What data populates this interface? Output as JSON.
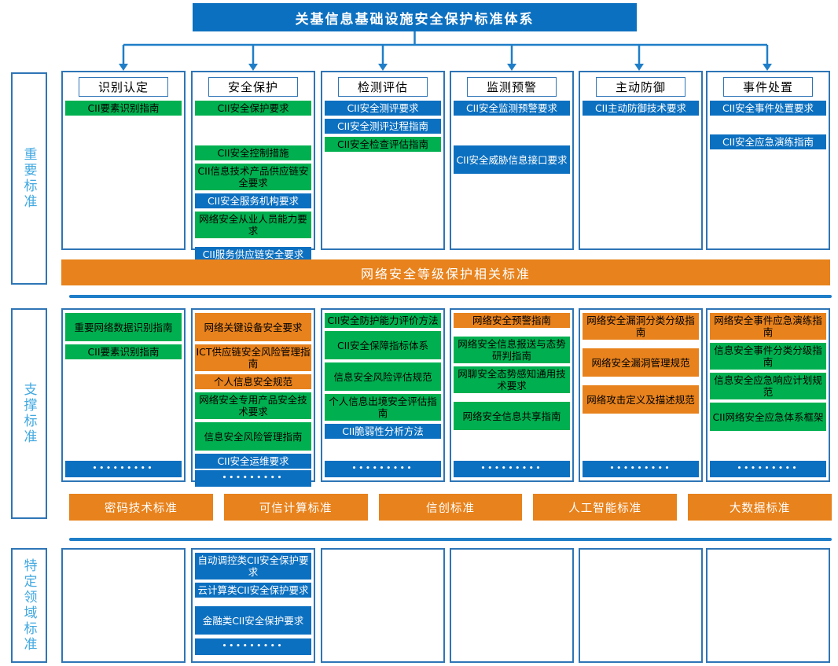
{
  "title": "关基信息基础设施安全保护标准体系",
  "colors": {
    "blue": "#0c70c0",
    "green": "#00b050",
    "orange": "#e8821c",
    "column_border": "#2e75b6",
    "arrow": "#1f7ec8",
    "side_label_text": "#41a8e0"
  },
  "side_labels": [
    {
      "id": "important",
      "label": "重要标准"
    },
    {
      "id": "supporting",
      "label": "支撑标准"
    },
    {
      "id": "domain",
      "label": "特定领域标准"
    }
  ],
  "important_section": {
    "columns": [
      {
        "header": "识别认定",
        "items": [
          {
            "text": "CII要素识别指南",
            "color": "green"
          }
        ]
      },
      {
        "header": "安全保护",
        "items": [
          {
            "text": "CII安全保护要求",
            "color": "green"
          },
          {
            "text": "CII安全控制措施",
            "color": "green",
            "gap": "lg"
          },
          {
            "text": "CII信息技术产品供应链安全要求",
            "color": "green"
          },
          {
            "text": "CII安全服务机构要求",
            "color": "blue"
          },
          {
            "text": "网络安全从业人员能力要求",
            "color": "green"
          },
          {
            "text": "CII服务供应链安全要求",
            "color": "blue",
            "gap": "sm"
          }
        ]
      },
      {
        "header": "检测评估",
        "items": [
          {
            "text": "CII安全测评要求",
            "color": "blue"
          },
          {
            "text": "CII安全测评过程指南",
            "color": "blue"
          },
          {
            "text": "CII安全检查评估指南",
            "color": "green"
          }
        ]
      },
      {
        "header": "监测预警",
        "items": [
          {
            "text": "CII安全监测预警要求",
            "color": "blue"
          },
          {
            "text": "CII安全威胁信息接口要求",
            "color": "blue",
            "gap": "lg",
            "tall": true
          }
        ]
      },
      {
        "header": "主动防御",
        "items": [
          {
            "text": "CII主动防御技术要求",
            "color": "blue"
          }
        ]
      },
      {
        "header": "事件处置",
        "items": [
          {
            "text": "CII安全事件处置要求",
            "color": "blue"
          },
          {
            "text": "CII安全应急演练指南",
            "color": "blue",
            "gap": "md"
          }
        ]
      }
    ]
  },
  "level_protection_banner": "网络安全等级保护相关标准",
  "supporting_section": {
    "columns": [
      {
        "items": [
          {
            "text": "重要网络数据识别指南",
            "color": "green",
            "tall": true
          },
          {
            "text": "CII要素识别指南",
            "color": "green"
          },
          {
            "text": "•••••••••",
            "color": "blue",
            "dots": true
          }
        ]
      },
      {
        "items": [
          {
            "text": "网络关键设备安全要求",
            "color": "orange",
            "tall": true
          },
          {
            "text": "ICT供应链安全风险管理指南",
            "color": "orange"
          },
          {
            "text": "个人信息安全规范",
            "color": "orange"
          },
          {
            "text": "网络安全专用产品安全技术要求",
            "color": "green"
          },
          {
            "text": "信息安全风险管理指南",
            "color": "green",
            "tall": true
          },
          {
            "text": "CII安全运维要求",
            "color": "blue"
          },
          {
            "text": "•••••••••",
            "color": "blue",
            "dots": true
          }
        ]
      },
      {
        "items": [
          {
            "text": "CII安全防护能力评价方法",
            "color": "green"
          },
          {
            "text": "CII安全保障指标体系",
            "color": "green",
            "tall": true
          },
          {
            "text": "信息安全风险评估规范",
            "color": "green",
            "tall": true
          },
          {
            "text": "个人信息出境安全评估指南",
            "color": "green"
          },
          {
            "text": "CII脆弱性分析方法",
            "color": "blue"
          },
          {
            "text": "•••••••••",
            "color": "blue",
            "dots": true
          }
        ]
      },
      {
        "items": [
          {
            "text": "网络安全预警指南",
            "color": "orange"
          },
          {
            "text": "网络安全信息报送与态势研判指南",
            "color": "green",
            "gap": "sm"
          },
          {
            "text": "网聊安全态势感知通用技术要求",
            "color": "green"
          },
          {
            "text": "网络安全信息共享指南",
            "color": "green",
            "tall": true,
            "gap": "sm"
          },
          {
            "text": "•••••••••",
            "color": "blue",
            "dots": true
          }
        ]
      },
      {
        "items": [
          {
            "text": "网络安全漏洞分类分级指南",
            "color": "orange"
          },
          {
            "text": "网络安全漏洞管理规范",
            "color": "orange",
            "tall": true,
            "gap": "sm"
          },
          {
            "text": "网络攻击定义及描述规范",
            "color": "orange",
            "tall": true,
            "gap": "sm"
          },
          {
            "text": "•••••••••",
            "color": "blue",
            "dots": true
          }
        ]
      },
      {
        "items": [
          {
            "text": "网络安全事件应急演练指南",
            "color": "orange"
          },
          {
            "text": "信息安全事件分类分级指南",
            "color": "green"
          },
          {
            "text": "信息安全应急响应计划规范",
            "color": "green"
          },
          {
            "text": "CII网络安全应急体系框架",
            "color": "green",
            "tall": true
          },
          {
            "text": "•••••••••",
            "color": "blue",
            "dots": true
          }
        ]
      }
    ]
  },
  "tech_banners": [
    "密码技术标准",
    "可信计算标准",
    "信创标准",
    "人工智能标准",
    "大数据标准"
  ],
  "domain_section": {
    "columns": [
      {
        "items": []
      },
      {
        "items": [
          {
            "text": "自动调控类CII安全保护要求",
            "color": "blue"
          },
          {
            "text": "云计算类CII安全保护要求",
            "color": "blue"
          },
          {
            "text": "金融类CII安全保护要求",
            "color": "blue",
            "gap": "sm",
            "tall": true
          },
          {
            "text": "•••••••••",
            "color": "blue",
            "dotsflow": true
          }
        ]
      },
      {
        "items": []
      },
      {
        "items": []
      },
      {
        "items": []
      },
      {
        "items": []
      }
    ]
  }
}
